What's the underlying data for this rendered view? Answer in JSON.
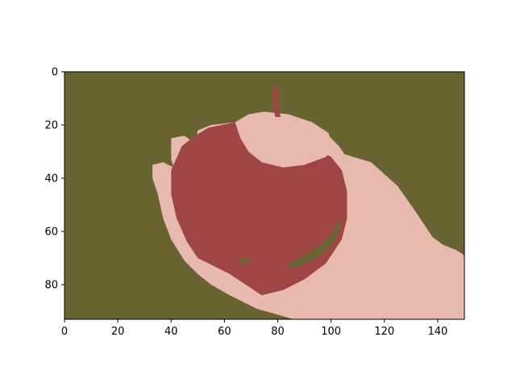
{
  "chart_data": {
    "type": "heatmap",
    "title": "",
    "xlabel": "",
    "ylabel": "",
    "xlim": [
      0,
      150
    ],
    "ylim": [
      93,
      0
    ],
    "grid": false,
    "x_ticks": [
      "0",
      "20",
      "40",
      "60",
      "80",
      "100",
      "120",
      "140"
    ],
    "y_ticks": [
      "0",
      "20",
      "40",
      "60",
      "80"
    ],
    "palette": {
      "background": "#676432",
      "skin": "#e8b9ae",
      "apple": "#a04545"
    },
    "regions": [
      {
        "name": "hand",
        "color": "skin",
        "polygon": [
          [
            105,
            31
          ],
          [
            115,
            34
          ],
          [
            125,
            43
          ],
          [
            132,
            53
          ],
          [
            138,
            62
          ],
          [
            142,
            65
          ],
          [
            147,
            67
          ],
          [
            150,
            69
          ],
          [
            150,
            93
          ],
          [
            86,
            93
          ],
          [
            72,
            89
          ],
          [
            62,
            84
          ],
          [
            55,
            80
          ],
          [
            50,
            76
          ],
          [
            45,
            71
          ],
          [
            40,
            63
          ],
          [
            37,
            55
          ],
          [
            35,
            46
          ],
          [
            33,
            40
          ],
          [
            33,
            35
          ],
          [
            37,
            34
          ],
          [
            41,
            36
          ],
          [
            40,
            33
          ],
          [
            40,
            25
          ],
          [
            45,
            24
          ],
          [
            49,
            27
          ],
          [
            50,
            22
          ],
          [
            55,
            20
          ],
          [
            64,
            19
          ],
          [
            69,
            16
          ],
          [
            75,
            15
          ],
          [
            82,
            16
          ],
          [
            90,
            18
          ],
          [
            97,
            22
          ],
          [
            103,
            28
          ]
        ]
      },
      {
        "name": "apple",
        "color": "apple",
        "polygon": [
          [
            54,
            21
          ],
          [
            64,
            19
          ],
          [
            70,
            19
          ],
          [
            80,
            23
          ],
          [
            90,
            27
          ],
          [
            100,
            32
          ],
          [
            104,
            37
          ],
          [
            106,
            45
          ],
          [
            106,
            55
          ],
          [
            104,
            63
          ],
          [
            98,
            72
          ],
          [
            90,
            78
          ],
          [
            82,
            82
          ],
          [
            74,
            84
          ],
          [
            68,
            80
          ],
          [
            62,
            76
          ],
          [
            56,
            73
          ],
          [
            50,
            70
          ],
          [
            46,
            64
          ],
          [
            42,
            55
          ],
          [
            40,
            46
          ],
          [
            40,
            37
          ],
          [
            44,
            28
          ],
          [
            49,
            24
          ]
        ]
      },
      {
        "name": "apple-highlight",
        "color": "skin",
        "polygon": [
          [
            64,
            19
          ],
          [
            75,
            15
          ],
          [
            84,
            16
          ],
          [
            93,
            19
          ],
          [
            99,
            23
          ],
          [
            101,
            29
          ],
          [
            98,
            32
          ],
          [
            90,
            35
          ],
          [
            82,
            36
          ],
          [
            74,
            34
          ],
          [
            69,
            30
          ],
          [
            66,
            25
          ]
        ]
      },
      {
        "name": "stem",
        "color": "apple",
        "polygon": [
          [
            78,
            6
          ],
          [
            80,
            6
          ],
          [
            80,
            10
          ],
          [
            81,
            17
          ],
          [
            79,
            17
          ],
          [
            78,
            10
          ]
        ]
      },
      {
        "name": "shadow-left",
        "color": "background",
        "polygon": [
          [
            66,
            70
          ],
          [
            69,
            70
          ],
          [
            69,
            72
          ],
          [
            66,
            72
          ]
        ]
      },
      {
        "name": "shadow-right",
        "color": "background",
        "polygon": [
          [
            84,
            72
          ],
          [
            90,
            69
          ],
          [
            96,
            65
          ],
          [
            100,
            61
          ],
          [
            103,
            56
          ],
          [
            104,
            58
          ],
          [
            101,
            64
          ],
          [
            96,
            69
          ],
          [
            90,
            72
          ],
          [
            85,
            74
          ]
        ]
      }
    ]
  }
}
